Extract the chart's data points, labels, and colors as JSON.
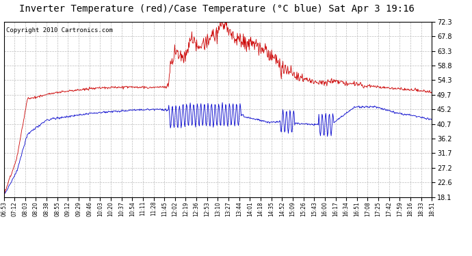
{
  "title": "Inverter Temperature (red)/Case Temperature (°C blue) Sat Apr 3 19:16",
  "copyright": "Copyright 2010 Cartronics.com",
  "y_ticks": [
    18.1,
    22.6,
    27.2,
    31.7,
    36.2,
    40.7,
    45.2,
    49.7,
    54.3,
    58.8,
    63.3,
    67.8,
    72.3
  ],
  "y_min": 18.1,
  "y_max": 72.3,
  "x_labels": [
    "06:53",
    "07:12",
    "08:03",
    "08:20",
    "08:38",
    "08:55",
    "09:12",
    "09:29",
    "09:46",
    "10:03",
    "10:20",
    "10:37",
    "10:54",
    "11:11",
    "11:28",
    "11:45",
    "12:02",
    "12:19",
    "12:36",
    "12:53",
    "13:10",
    "13:27",
    "13:44",
    "14:01",
    "14:18",
    "14:35",
    "14:52",
    "15:09",
    "15:26",
    "15:43",
    "16:00",
    "16:17",
    "16:34",
    "16:51",
    "17:08",
    "17:25",
    "17:42",
    "17:59",
    "18:16",
    "18:33",
    "18:51"
  ],
  "red_color": "#cc0000",
  "blue_color": "#0000cc",
  "bg_color": "#ffffff",
  "grid_color": "#bbbbbb",
  "title_fontsize": 10,
  "copyright_fontsize": 6.5
}
